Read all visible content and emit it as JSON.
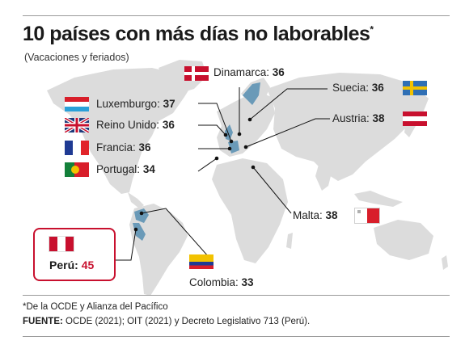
{
  "title": "10 países con más días no laborables",
  "title_mark": "*",
  "subtitle": "(Vacaciones y feriados)",
  "chart_data": {
    "type": "map",
    "title": "10 países con más días no laborables",
    "subtitle": "(Vacaciones y feriados)",
    "unit_separator": ": ",
    "categories": [
      "Dinamarca",
      "Suecia",
      "Luxemburgo",
      "Reino Unido",
      "Austria",
      "Francia",
      "Portugal",
      "Malta",
      "Perú",
      "Colombia"
    ],
    "values": [
      36,
      36,
      37,
      36,
      38,
      36,
      34,
      38,
      45,
      33
    ],
    "highlight": "Perú",
    "highlight_color": "#c8102e",
    "land_color": "#dcdcdc",
    "marked_color": "#6a9ab8"
  },
  "footnote": "*De la OCDE y Alianza del Pacífico",
  "source": {
    "label": "FUENTE:",
    "text": "OCDE (2021); OIT (2021) y Decreto Legislativo 713 (Perú)."
  }
}
